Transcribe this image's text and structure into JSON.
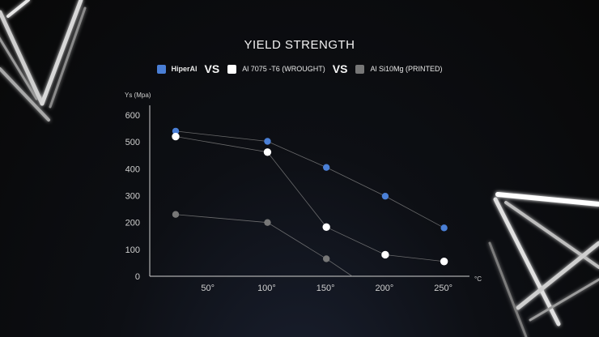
{
  "chart_data": {
    "type": "line",
    "title": "YIELD STRENGTH",
    "ylabel": "Ys (Mpa)",
    "xlabel": "°C",
    "ylim": [
      0,
      650
    ],
    "xlim": [
      0,
      275
    ],
    "yticks": [
      0,
      100,
      200,
      300,
      400,
      500,
      600
    ],
    "xticks": [
      50,
      100,
      150,
      200,
      250
    ],
    "xtick_labels": [
      "50°",
      "100°",
      "150°",
      "200°",
      "250°"
    ],
    "vs_label": "VS",
    "series": [
      {
        "name": "HiperAl",
        "color": "#4a7fd6",
        "x": [
          22,
          100,
          150,
          200,
          250
        ],
        "y": [
          540,
          502,
          405,
          298,
          180
        ]
      },
      {
        "name": "Al 7075 -T6 (WROUGHT)",
        "color": "#ffffff",
        "x": [
          22,
          100,
          150,
          200,
          250
        ],
        "y": [
          520,
          462,
          183,
          80,
          55
        ]
      },
      {
        "name": "Al Si10Mg (PRINTED)",
        "color": "#777777",
        "x": [
          22,
          100,
          150,
          172
        ],
        "y": [
          230,
          200,
          65,
          0
        ]
      }
    ]
  }
}
